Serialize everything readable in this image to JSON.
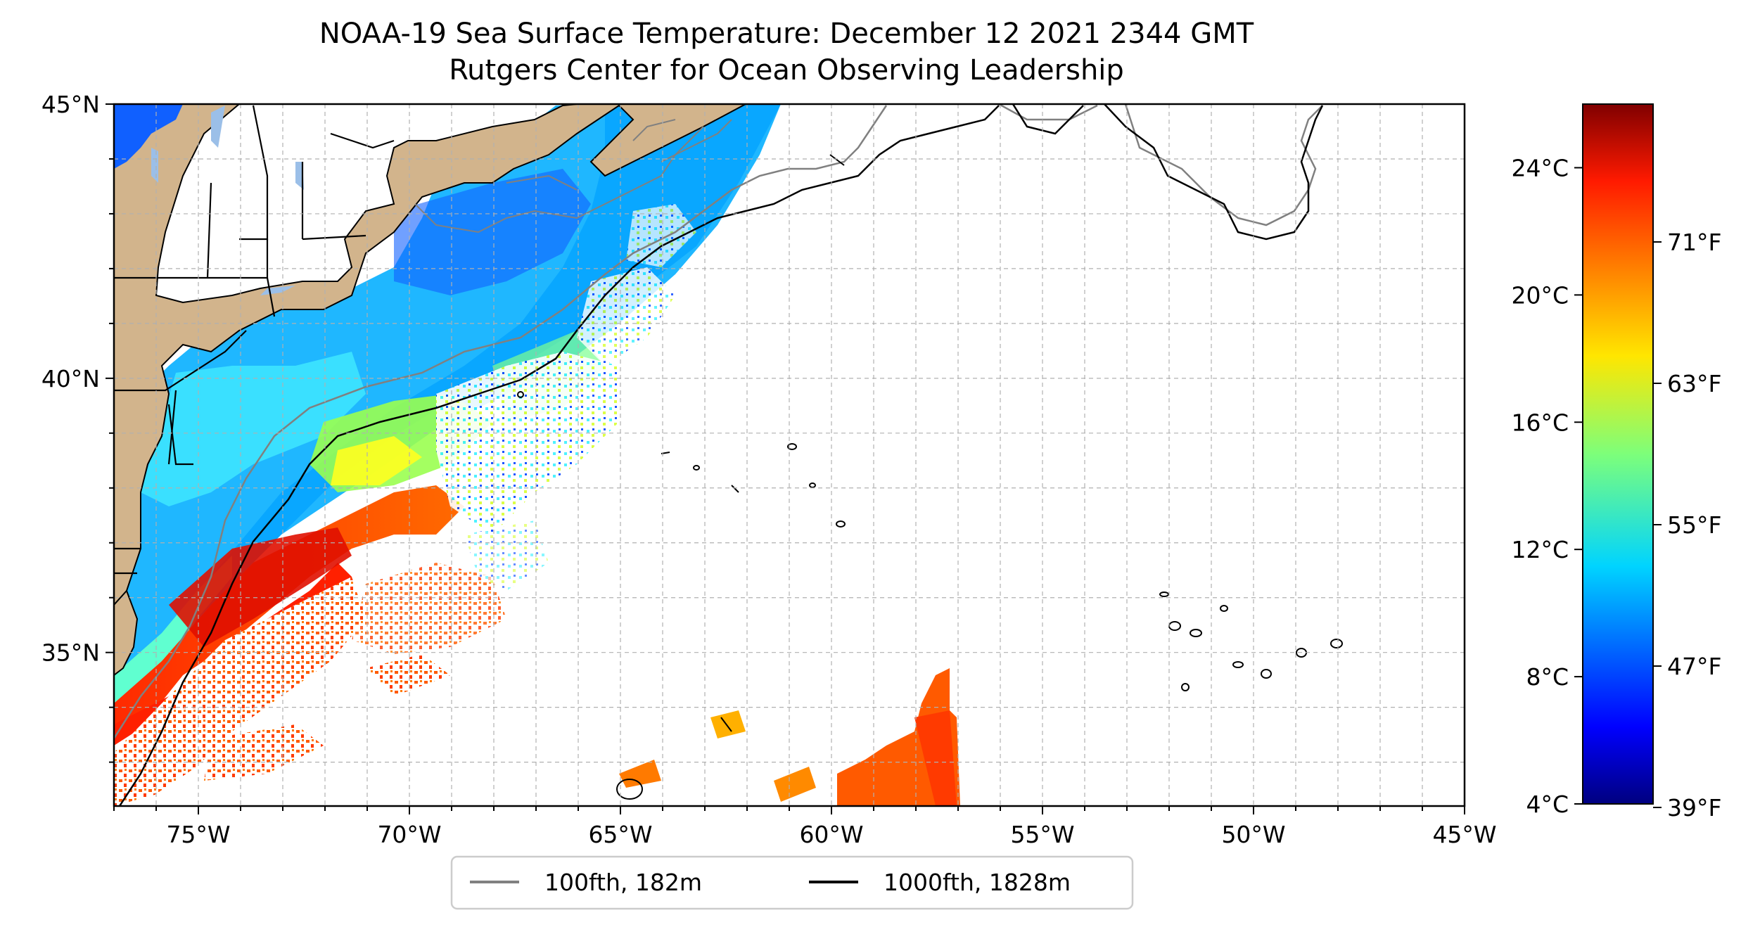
{
  "title": {
    "line1": "NOAA-19 Sea Surface Temperature: December 12 2021 2344 GMT",
    "line2": "Rutgers Center for Ocean Observing Leadership"
  },
  "map": {
    "lat_range": [
      32.2,
      45
    ],
    "lon_range": [
      -77,
      -45
    ],
    "lat_ticks": [
      {
        "value": 45,
        "label": "45°N"
      },
      {
        "value": 40,
        "label": "40°N"
      },
      {
        "value": 35,
        "label": "35°N"
      }
    ],
    "lon_ticks": [
      {
        "value": -75,
        "label": "75°W"
      },
      {
        "value": -70,
        "label": "70°W"
      },
      {
        "value": -65,
        "label": "65°W"
      },
      {
        "value": -60,
        "label": "60°W"
      },
      {
        "value": -55,
        "label": "55°W"
      },
      {
        "value": -50,
        "label": "50°W"
      },
      {
        "value": -45,
        "label": "45°W"
      }
    ],
    "grid": "dashed, every 1 degree",
    "land_color": "#d2b48c",
    "lake_color": "#9bbfe8"
  },
  "colorbar": {
    "colormap": "jet",
    "celsius_ticks": [
      {
        "value": 4,
        "label": "4°C"
      },
      {
        "value": 8,
        "label": "8°C"
      },
      {
        "value": 12,
        "label": "12°C"
      },
      {
        "value": 16,
        "label": "16°C"
      },
      {
        "value": 20,
        "label": "20°C"
      },
      {
        "value": 24,
        "label": "24°C"
      }
    ],
    "fahrenheit_ticks": [
      {
        "value": 39,
        "label": "39°F"
      },
      {
        "value": 47,
        "label": "47°F"
      },
      {
        "value": 55,
        "label": "55°F"
      },
      {
        "value": 63,
        "label": "63°F"
      },
      {
        "value": 71,
        "label": "71°F"
      }
    ],
    "range_c": [
      4,
      26
    ]
  },
  "legend": {
    "items": [
      {
        "label": "100fth, 182m",
        "color": "#808080"
      },
      {
        "label": "1000fth, 1828m",
        "color": "#000000"
      }
    ]
  }
}
